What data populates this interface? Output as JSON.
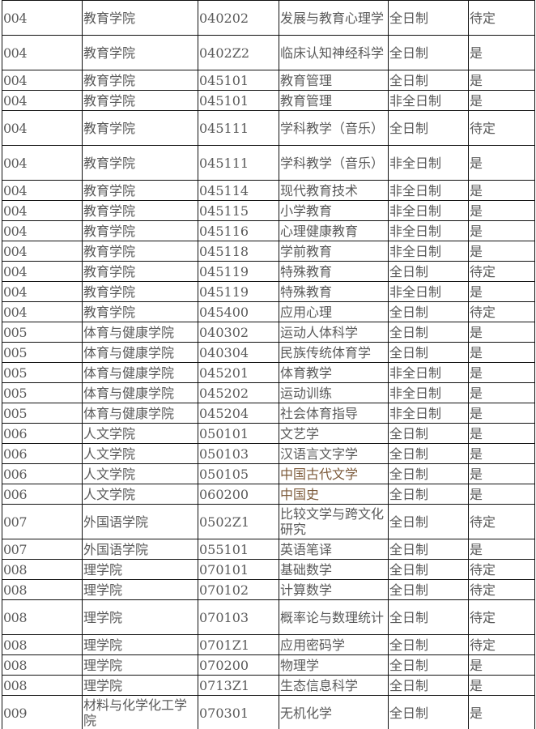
{
  "accent_colors": {
    "text": "#5a5a5a",
    "highlight_text": "#7c5a3a",
    "border": "#111111"
  },
  "rows": [
    [
      "004",
      "教育学院",
      "040202",
      "发展与教育心理学",
      "全日制",
      "待定"
    ],
    [
      "004",
      "教育学院",
      "0402Z2",
      "临床认知神经科学",
      "全日制",
      "是"
    ],
    [
      "004",
      "教育学院",
      "045101",
      "教育管理",
      "全日制",
      "是"
    ],
    [
      "004",
      "教育学院",
      "045101",
      "教育管理",
      "非全日制",
      "是"
    ],
    [
      "004",
      "教育学院",
      "045111",
      "学科教学（音乐）",
      "全日制",
      "待定"
    ],
    [
      "004",
      "教育学院",
      "045111",
      "学科教学（音乐）",
      "非全日制",
      "是"
    ],
    [
      "004",
      "教育学院",
      "045114",
      "现代教育技术",
      "非全日制",
      "是"
    ],
    [
      "004",
      "教育学院",
      "045115",
      "小学教育",
      "非全日制",
      "是"
    ],
    [
      "004",
      "教育学院",
      "045116",
      "心理健康教育",
      "非全日制",
      "是"
    ],
    [
      "004",
      "教育学院",
      "045118",
      "学前教育",
      "非全日制",
      "是"
    ],
    [
      "004",
      "教育学院",
      "045119",
      "特殊教育",
      "全日制",
      "待定"
    ],
    [
      "004",
      "教育学院",
      "045119",
      "特殊教育",
      "非全日制",
      "是"
    ],
    [
      "004",
      "教育学院",
      "045400",
      "应用心理",
      "全日制",
      "待定"
    ],
    [
      "005",
      "体育与健康学院",
      "040302",
      "运动人体科学",
      "全日制",
      "是"
    ],
    [
      "005",
      "体育与健康学院",
      "040304",
      "民族传统体育学",
      "全日制",
      "是"
    ],
    [
      "005",
      "体育与健康学院",
      "045201",
      "体育教学",
      "非全日制",
      "是"
    ],
    [
      "005",
      "体育与健康学院",
      "045202",
      "运动训练",
      "非全日制",
      "是"
    ],
    [
      "005",
      "体育与健康学院",
      "045204",
      "社会体育指导",
      "非全日制",
      "是"
    ],
    [
      "006",
      "人文学院",
      "050101",
      "文艺学",
      "全日制",
      "是"
    ],
    [
      "006",
      "人文学院",
      "050103",
      "汉语言文字学",
      "全日制",
      "是"
    ],
    [
      "006",
      "人文学院",
      "050105",
      "中国古代文学",
      "全日制",
      "是"
    ],
    [
      "006",
      "人文学院",
      "060200",
      "中国史",
      "全日制",
      "是"
    ],
    [
      "007",
      "外国语学院",
      "0502Z1",
      "比较文学与跨文化研究",
      "全日制",
      "待定"
    ],
    [
      "007",
      "外国语学院",
      "055101",
      "英语笔译",
      "全日制",
      "是"
    ],
    [
      "008",
      "理学院",
      "070101",
      "基础数学",
      "全日制",
      "待定"
    ],
    [
      "008",
      "理学院",
      "070102",
      "计算数学",
      "全日制",
      "待定"
    ],
    [
      "008",
      "理学院",
      "070103",
      "概率论与数理统计",
      "全日制",
      "待定"
    ],
    [
      "008",
      "理学院",
      "0701Z1",
      "应用密码学",
      "全日制",
      "待定"
    ],
    [
      "008",
      "理学院",
      "070200",
      "物理学",
      "全日制",
      "是"
    ],
    [
      "008",
      "理学院",
      "0713Z1",
      "生态信息科学",
      "全日制",
      "是"
    ],
    [
      "009",
      "材料与化学化工学院",
      "070301",
      "无机化学",
      "全日制",
      "是"
    ]
  ]
}
